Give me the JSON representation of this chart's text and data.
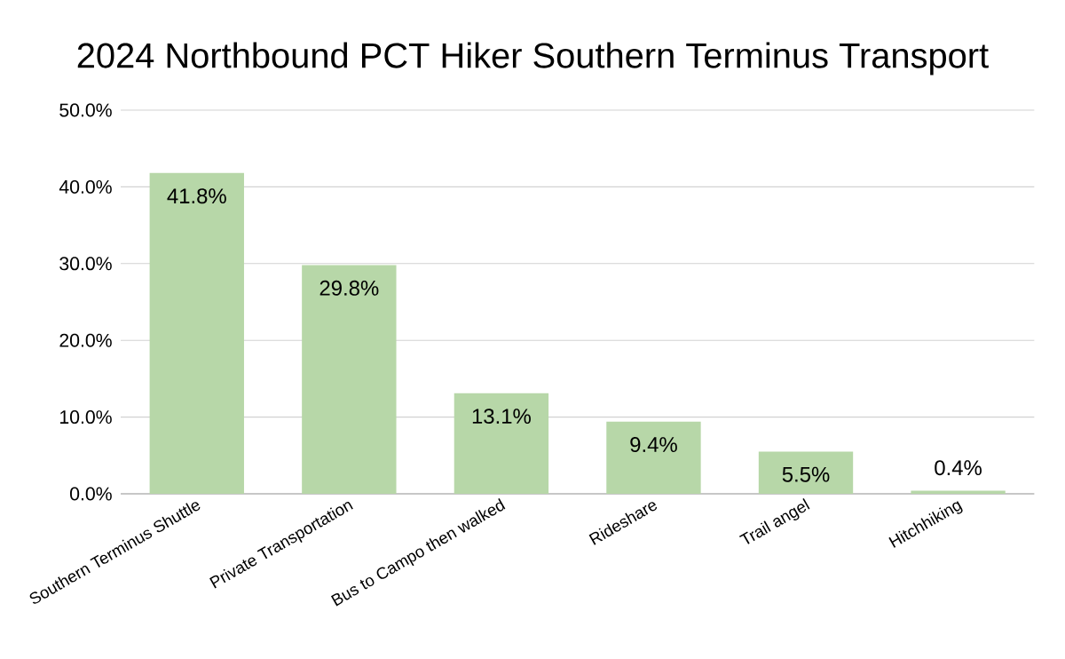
{
  "chart_data": {
    "type": "bar",
    "title": "2024 Northbound PCT Hiker Southern Terminus Transport",
    "categories": [
      "Southern Terminus Shuttle",
      "Private Transportation",
      "Bus to Campo then walked",
      "Rideshare",
      "Trail angel",
      "Hitchhiking"
    ],
    "values": [
      41.8,
      29.8,
      13.1,
      9.4,
      5.5,
      0.4
    ],
    "value_labels": [
      "41.8%",
      "29.8%",
      "13.1%",
      "9.4%",
      "5.5%",
      "0.4%"
    ],
    "color": "#b7d7a8",
    "ylim": [
      0,
      50
    ],
    "yticks": [
      {
        "value": 0,
        "label": "0.0%"
      },
      {
        "value": 10,
        "label": "10.0%"
      },
      {
        "value": 20,
        "label": "20.0%"
      },
      {
        "value": 30,
        "label": "30.0%"
      },
      {
        "value": 40,
        "label": "40.0%"
      },
      {
        "value": 50,
        "label": "50.0%"
      }
    ],
    "grid": "y"
  }
}
